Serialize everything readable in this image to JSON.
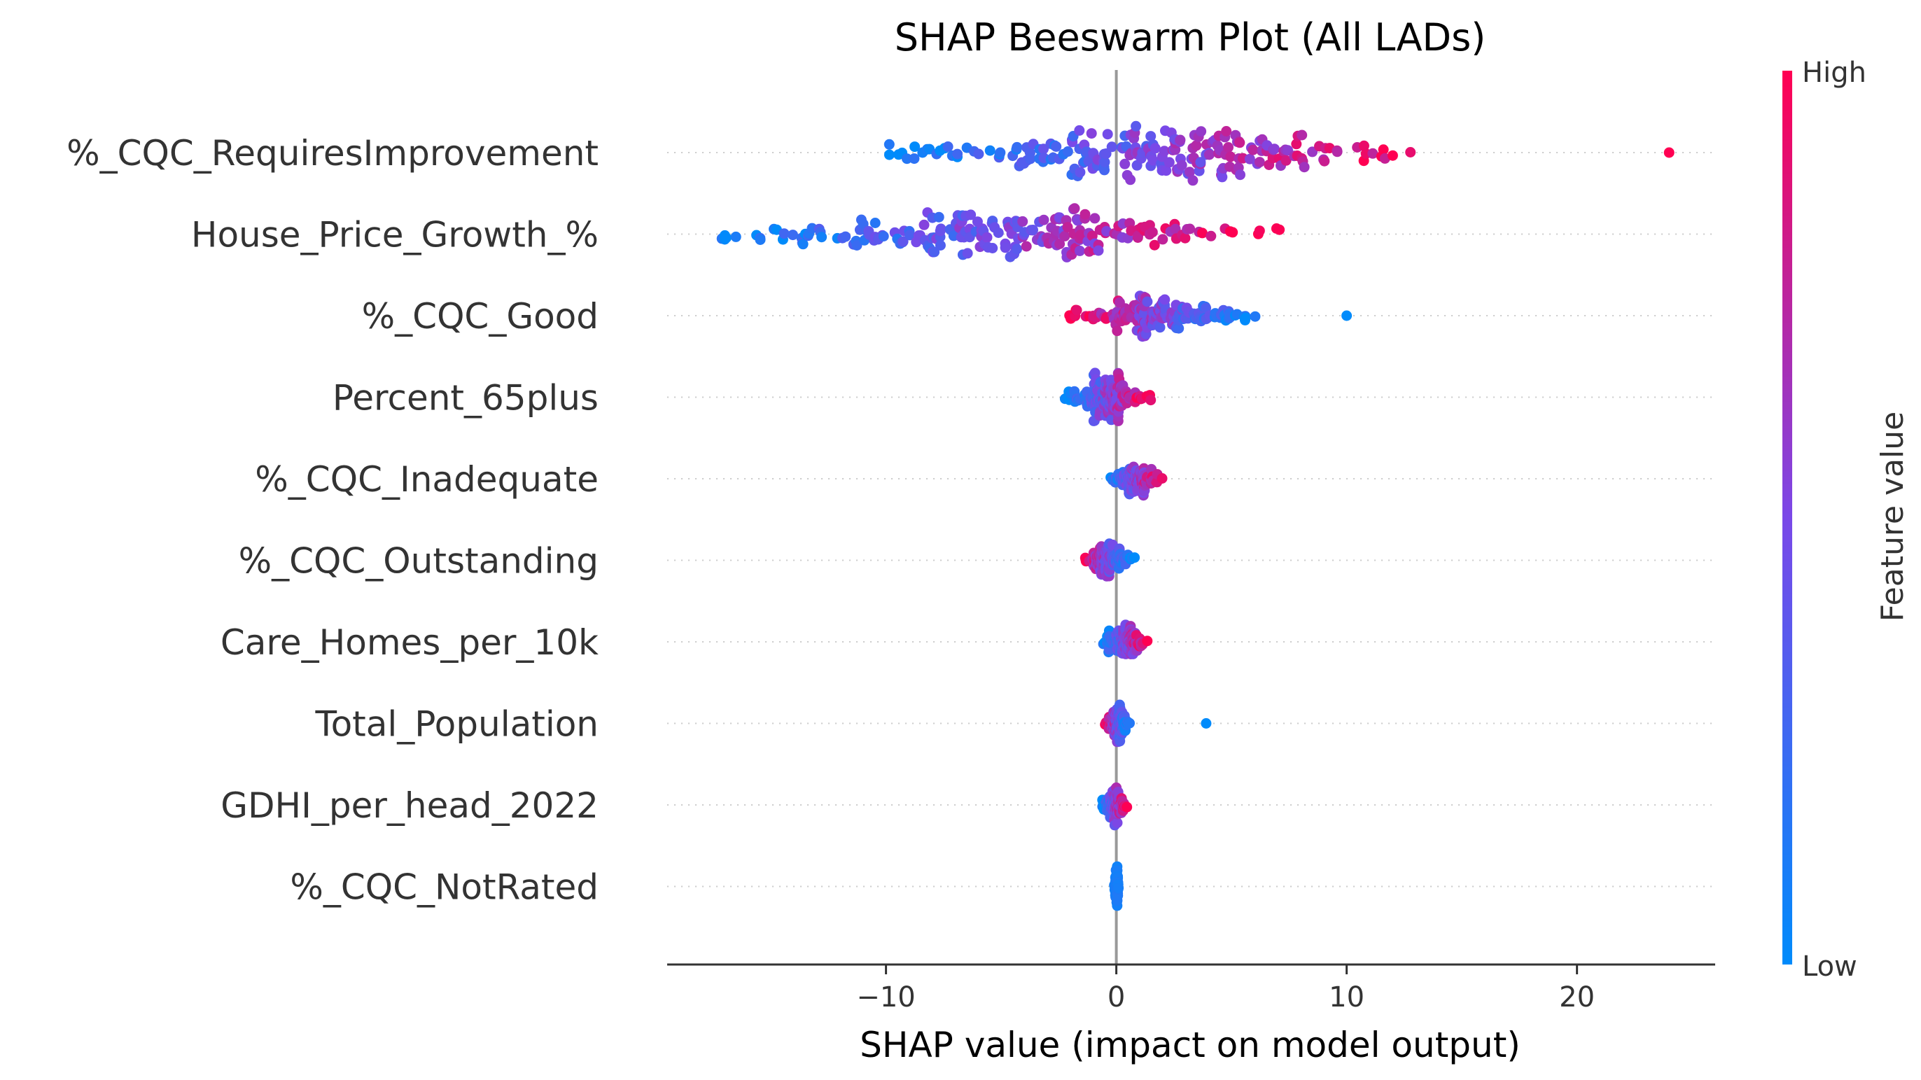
{
  "chart_data": {
    "type": "scatter",
    "title": "SHAP Beeswarm Plot (All LADs)",
    "xlabel": "SHAP value (impact on model output)",
    "xlim": [
      -19.5,
      26
    ],
    "xticks": [
      -10,
      0,
      10,
      20
    ],
    "xtick_labels": [
      "−10",
      "0",
      "10",
      "20"
    ],
    "features": [
      "%_CQC_RequiresImprovement",
      "House_Price_Growth_%",
      "%_CQC_Good",
      "Percent_65plus",
      "%_CQC_Inadequate",
      "%_CQC_Outstanding",
      "Care_Homes_per_10k",
      "Total_Population",
      "GDHI_per_head_2022",
      "%_CQC_NotRated"
    ],
    "colorbar": {
      "label": "Feature value",
      "high": "High",
      "low": "Low",
      "low_color": "#008bfb",
      "high_color": "#ff0052"
    },
    "zero_line": true,
    "distributions": [
      {
        "feature": "%_CQC_RequiresImprovement",
        "min": -10,
        "max": 13.5,
        "outliers": [
          24
        ],
        "corr": 1,
        "n": 220,
        "spread": 0.35
      },
      {
        "feature": "House_Price_Growth_%",
        "min": -17.5,
        "max": 7.6,
        "outliers": [],
        "corr": 1,
        "n": 220,
        "spread": 0.35
      },
      {
        "feature": "%_CQC_Good",
        "min": -2.3,
        "max": 6.2,
        "outliers": [
          10
        ],
        "corr": -1,
        "n": 160,
        "spread": 0.28
      },
      {
        "feature": "Percent_65plus",
        "min": -2.3,
        "max": 1.5,
        "outliers": [],
        "corr": 1,
        "n": 150,
        "spread": 0.3
      },
      {
        "feature": "%_CQC_Inadequate",
        "min": -0.4,
        "max": 2.0,
        "outliers": [],
        "corr": 1,
        "n": 140,
        "spread": 0.22
      },
      {
        "feature": "%_CQC_Outstanding",
        "min": -1.5,
        "max": 0.8,
        "outliers": [],
        "corr": -1,
        "n": 130,
        "spread": 0.25
      },
      {
        "feature": "Care_Homes_per_10k",
        "min": -0.6,
        "max": 1.4,
        "outliers": [],
        "corr": 1,
        "n": 130,
        "spread": 0.22
      },
      {
        "feature": "Total_Population",
        "min": -0.5,
        "max": 0.6,
        "outliers": [
          3.9
        ],
        "corr": -1,
        "n": 130,
        "spread": 0.25
      },
      {
        "feature": "GDHI_per_head_2022",
        "min": -0.6,
        "max": 0.5,
        "outliers": [],
        "corr": 1,
        "n": 130,
        "spread": 0.25
      },
      {
        "feature": "%_CQC_NotRated",
        "min": -0.1,
        "max": 0.1,
        "outliers": [],
        "corr": 0,
        "n": 130,
        "spread": 0.25
      }
    ]
  }
}
